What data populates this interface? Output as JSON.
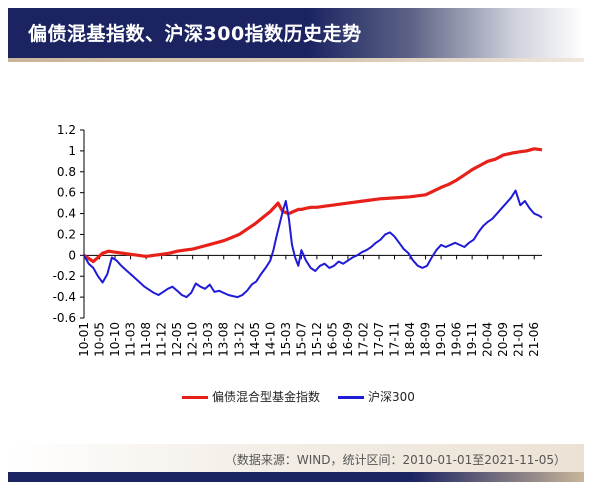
{
  "header": {
    "title": "偏债混基指数、沪深300指数历史走势"
  },
  "footer": {
    "note": "（数据来源：WIND，统计区间：2010-01-01至2021-11-05）"
  },
  "chart_data": {
    "type": "line",
    "title": "",
    "xlabel": "",
    "ylabel": "",
    "ylim": [
      -0.6,
      1.2
    ],
    "yticks": [
      "1.2",
      "1",
      "0.8",
      "0.6",
      "0.4",
      "0.2",
      "0",
      "-0.2",
      "-0.4",
      "-0.6"
    ],
    "xtick_labels": [
      "10-01",
      "10-05",
      "10-10",
      "11-03",
      "11-08",
      "11-12",
      "12-05",
      "12-10",
      "13-03",
      "13-08",
      "13-12",
      "14-05",
      "14-10",
      "15-03",
      "15-07",
      "15-12",
      "16-05",
      "16-09",
      "17-02",
      "17-07",
      "17-11",
      "18-04",
      "18-09",
      "19-01",
      "19-06",
      "19-11",
      "20-04",
      "20-09",
      "21-01",
      "21-06"
    ],
    "grid": false,
    "legend": "bottom",
    "series": [
      {
        "name": "偏债混合型基金指数",
        "color": "#e8201a",
        "x": [
          0.0,
          0.3,
          0.6,
          0.9,
          1.2,
          1.6,
          2.0,
          2.5,
          3.0,
          3.5,
          4.0,
          4.5,
          5.0,
          5.5,
          6.0,
          6.5,
          7.0,
          7.5,
          8.0,
          8.5,
          9.0,
          9.5,
          10.0,
          10.5,
          11.0,
          11.5,
          12.0,
          12.5,
          12.8,
          13.2,
          13.5,
          13.8,
          14.0,
          14.3,
          14.6,
          15.0,
          15.5,
          16.0,
          17.0,
          18.0,
          19.0,
          20.0,
          21.0,
          22.0,
          23.0,
          23.5,
          24.0,
          24.5,
          25.0,
          25.5,
          26.0,
          26.5,
          27.0,
          27.3,
          27.6,
          28.0,
          28.5,
          29.0,
          29.5
        ],
        "values": [
          0.0,
          -0.03,
          -0.06,
          -0.02,
          0.02,
          0.04,
          0.03,
          0.02,
          0.01,
          0.0,
          -0.01,
          0.0,
          0.01,
          0.02,
          0.04,
          0.05,
          0.06,
          0.08,
          0.1,
          0.12,
          0.14,
          0.17,
          0.2,
          0.25,
          0.3,
          0.36,
          0.42,
          0.5,
          0.42,
          0.4,
          0.42,
          0.44,
          0.44,
          0.45,
          0.46,
          0.46,
          0.47,
          0.48,
          0.5,
          0.52,
          0.54,
          0.55,
          0.56,
          0.58,
          0.65,
          0.68,
          0.72,
          0.77,
          0.82,
          0.86,
          0.9,
          0.92,
          0.96,
          0.97,
          0.98,
          0.99,
          1.0,
          1.02,
          1.01
        ]
      },
      {
        "name": "沪深300",
        "color": "#1f1bd6",
        "x": [
          0.0,
          0.3,
          0.6,
          0.9,
          1.2,
          1.5,
          1.8,
          2.1,
          2.4,
          2.7,
          3.0,
          3.3,
          3.6,
          3.9,
          4.2,
          4.5,
          4.8,
          5.1,
          5.4,
          5.7,
          6.0,
          6.3,
          6.6,
          6.9,
          7.2,
          7.5,
          7.8,
          8.1,
          8.4,
          8.7,
          9.0,
          9.3,
          9.6,
          9.9,
          10.2,
          10.5,
          10.8,
          11.1,
          11.4,
          11.7,
          12.0,
          12.2,
          12.4,
          12.6,
          12.8,
          13.0,
          13.2,
          13.4,
          13.6,
          13.8,
          14.0,
          14.3,
          14.6,
          14.9,
          15.2,
          15.5,
          15.8,
          16.1,
          16.4,
          16.7,
          17.0,
          17.3,
          17.6,
          17.9,
          18.2,
          18.5,
          18.8,
          19.1,
          19.4,
          19.7,
          20.0,
          20.3,
          20.6,
          20.9,
          21.2,
          21.5,
          21.8,
          22.1,
          22.4,
          22.7,
          23.0,
          23.3,
          23.6,
          23.9,
          24.2,
          24.5,
          24.8,
          25.1,
          25.4,
          25.7,
          26.0,
          26.3,
          26.6,
          26.9,
          27.2,
          27.5,
          27.8,
          28.1,
          28.4,
          28.7,
          29.0,
          29.3,
          29.5
        ],
        "values": [
          0.0,
          -0.08,
          -0.12,
          -0.2,
          -0.26,
          -0.18,
          -0.02,
          -0.05,
          -0.1,
          -0.14,
          -0.18,
          -0.22,
          -0.26,
          -0.3,
          -0.33,
          -0.36,
          -0.38,
          -0.35,
          -0.32,
          -0.3,
          -0.34,
          -0.38,
          -0.4,
          -0.36,
          -0.27,
          -0.3,
          -0.32,
          -0.28,
          -0.35,
          -0.34,
          -0.36,
          -0.38,
          -0.39,
          -0.4,
          -0.38,
          -0.34,
          -0.28,
          -0.25,
          -0.18,
          -0.12,
          -0.05,
          0.05,
          0.18,
          0.3,
          0.42,
          0.52,
          0.35,
          0.1,
          -0.02,
          -0.1,
          0.05,
          -0.05,
          -0.12,
          -0.15,
          -0.1,
          -0.08,
          -0.12,
          -0.1,
          -0.06,
          -0.08,
          -0.05,
          -0.02,
          0.0,
          0.03,
          0.05,
          0.08,
          0.12,
          0.15,
          0.2,
          0.22,
          0.18,
          0.12,
          0.06,
          0.02,
          -0.05,
          -0.1,
          -0.12,
          -0.1,
          -0.02,
          0.05,
          0.1,
          0.08,
          0.1,
          0.12,
          0.1,
          0.08,
          0.12,
          0.15,
          0.22,
          0.28,
          0.32,
          0.35,
          0.4,
          0.45,
          0.5,
          0.55,
          0.62,
          0.48,
          0.52,
          0.45,
          0.4,
          0.38,
          0.36
        ]
      }
    ]
  }
}
